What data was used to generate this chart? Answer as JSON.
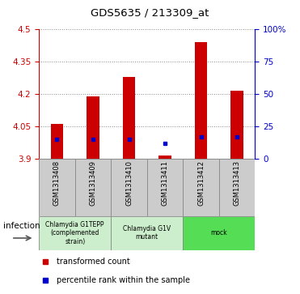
{
  "title": "GDS5635 / 213309_at",
  "samples": [
    "GSM1313408",
    "GSM1313409",
    "GSM1313410",
    "GSM1313411",
    "GSM1313412",
    "GSM1313413"
  ],
  "red_bar_top": [
    4.062,
    4.19,
    4.28,
    3.915,
    4.44,
    4.215
  ],
  "blue_square_value": [
    3.99,
    3.99,
    3.99,
    3.972,
    4.0,
    4.0
  ],
  "bar_bottom": 3.9,
  "ylim_left": [
    3.9,
    4.5
  ],
  "ylim_right": [
    0,
    100
  ],
  "yticks_left": [
    3.9,
    4.05,
    4.2,
    4.35,
    4.5
  ],
  "yticks_right": [
    0,
    25,
    50,
    75,
    100
  ],
  "ytick_labels_right": [
    "0",
    "25",
    "50",
    "75",
    "100%"
  ],
  "group_configs": [
    {
      "start": 0,
      "end": 1,
      "label": "Chlamydia G1TEPP\n(complemented\nstrain)",
      "color": "#cceecc"
    },
    {
      "start": 2,
      "end": 3,
      "label": "Chlamydia G1V\nmutant",
      "color": "#cceecc"
    },
    {
      "start": 4,
      "end": 5,
      "label": "mock",
      "color": "#55dd55"
    }
  ],
  "sample_cell_color": "#cccccc",
  "sample_cell_edge": "#888888",
  "bar_color": "#cc0000",
  "blue_color": "#0000cc",
  "infection_label": "infection",
  "legend_red": "transformed count",
  "legend_blue": "percentile rank within the sample",
  "axis_color_left": "#cc0000",
  "axis_color_right": "#0000cc",
  "grid_color": "#888888",
  "bar_width": 0.35
}
